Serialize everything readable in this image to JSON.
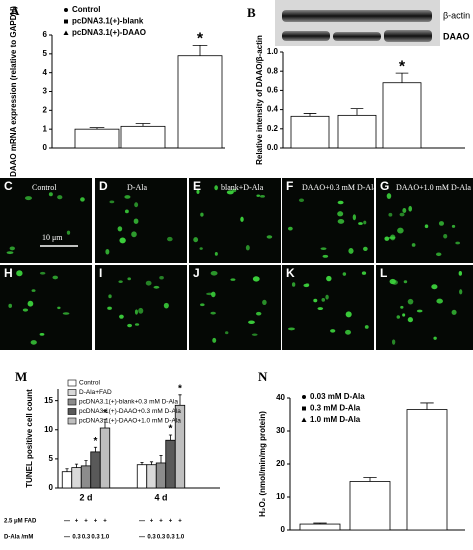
{
  "chart_data": [
    {
      "type": "bar",
      "title": "A",
      "ylabel": "DAAO mRNA expression (relative to GAPDH)",
      "ylim": [
        0,
        6
      ],
      "yticks": [
        0,
        1,
        2,
        3,
        4,
        5,
        6
      ],
      "series": [
        {
          "name": "Control",
          "color": "#ffffff",
          "values": [
            1.0
          ],
          "errors": [
            0.08
          ]
        },
        {
          "name": "pcDNA3.1(+)-blank",
          "color": "#ffffff",
          "values": [
            1.15
          ],
          "errors": [
            0.15
          ]
        },
        {
          "name": "pcDNA3.1(+)-DAAO",
          "color": "#ffffff",
          "values": [
            4.9
          ],
          "errors": [
            0.55
          ]
        }
      ],
      "annotations": [
        {
          "text": "*",
          "series": 2,
          "index": 0
        }
      ]
    },
    {
      "type": "bar",
      "title": "B",
      "ylabel": "Relative intensity of DAAO/β-actin",
      "ylim": [
        0,
        1
      ],
      "yticks": [
        {
          "value": 0,
          "label": "0.0"
        },
        0.2,
        0.4,
        0.6,
        0.8,
        {
          "value": 1,
          "label": "1.0"
        }
      ],
      "categories": [
        null,
        null,
        null
      ],
      "color": "#ffffff",
      "values": [
        0.33,
        0.34,
        0.68
      ],
      "errors": [
        0.03,
        0.07,
        0.1
      ],
      "annotations": [
        {
          "text": "*",
          "index": 2
        }
      ]
    },
    {
      "type": "grouped_bar",
      "title": "M",
      "ylabel": "TUNEL positive cell count",
      "ylim": [
        0,
        17
      ],
      "yticks": [
        0,
        5,
        10,
        15
      ],
      "categories": [
        "2 d",
        "4 d"
      ],
      "series": [
        {
          "name": "Control",
          "color": "#ffffff",
          "values": [
            2.8,
            4.0
          ],
          "errors": [
            0.5,
            0.4
          ]
        },
        {
          "name": "D-Ala+FAD",
          "color": "#d9d9d9",
          "values": [
            3.5,
            4.0
          ],
          "errors": [
            0.6,
            0.5
          ]
        },
        {
          "name": "pcDNA3.1(+)-blank+0.3 mM D-Ala",
          "color": "#8c8c8c",
          "values": [
            3.8,
            4.3
          ],
          "errors": [
            0.9,
            1.3
          ]
        },
        {
          "name": "pcDNA3.1(+)-DAAO+0.3 mM D-Ala",
          "color": "#595959",
          "values": [
            6.2,
            8.2
          ],
          "errors": [
            0.8,
            0.9
          ]
        },
        {
          "name": "pcDNA3.1(+)-DAAO+1.0 mM D-Ala",
          "color": "#bfbfbf",
          "values": [
            10.3,
            14.2
          ],
          "errors": [
            1.5,
            1.8
          ]
        }
      ],
      "annotations": [
        {
          "text": "*",
          "series": 3,
          "index": 0
        },
        {
          "text": "*",
          "series": 4,
          "index": 0
        },
        {
          "text": "*",
          "series": 3,
          "index": 1
        },
        {
          "text": "*",
          "series": 4,
          "index": 1
        }
      ],
      "conditions": [
        {
          "label": "2.5 μM FAD",
          "values": [
            "—",
            "+",
            "+",
            "+",
            "+"
          ]
        },
        {
          "label": "D-Ala /mM",
          "values": [
            "—",
            "0.3",
            "0.3",
            "0.3",
            "1.0"
          ]
        }
      ]
    },
    {
      "type": "bar",
      "title": "N",
      "ylabel": "H₂O₂ (nmol/min/mg protein)",
      "ylim": [
        0,
        40
      ],
      "yticks": [
        0,
        10,
        20,
        30,
        40
      ],
      "series": [
        {
          "name": "0.03 mM D-Ala",
          "color": "#ffffff",
          "values": [
            1.8
          ],
          "errors": [
            0.3
          ]
        },
        {
          "name": "0.3 mM D-Ala",
          "color": "#ffffff",
          "values": [
            14.7
          ],
          "errors": [
            1.2
          ]
        },
        {
          "name": "1.0 mM D-Ala",
          "color": "#ffffff",
          "values": [
            36.5
          ],
          "errors": [
            2.0
          ]
        }
      ]
    }
  ],
  "blot": {
    "labels": [
      "β-actin",
      "DAAO"
    ]
  },
  "micrographs": {
    "scale_bar": "10 μm",
    "panels": [
      {
        "label": "C",
        "caption": "Control"
      },
      {
        "label": "D",
        "caption": "D-Ala"
      },
      {
        "label": "E",
        "caption": "blank+D-Ala"
      },
      {
        "label": "F",
        "caption": "DAAO+0.3 mM D-Ala"
      },
      {
        "label": "G",
        "caption": "DAAO+1.0 mM D-Ala"
      },
      {
        "label": "H"
      },
      {
        "label": "I"
      },
      {
        "label": "J"
      },
      {
        "label": "K"
      },
      {
        "label": "L"
      }
    ]
  }
}
